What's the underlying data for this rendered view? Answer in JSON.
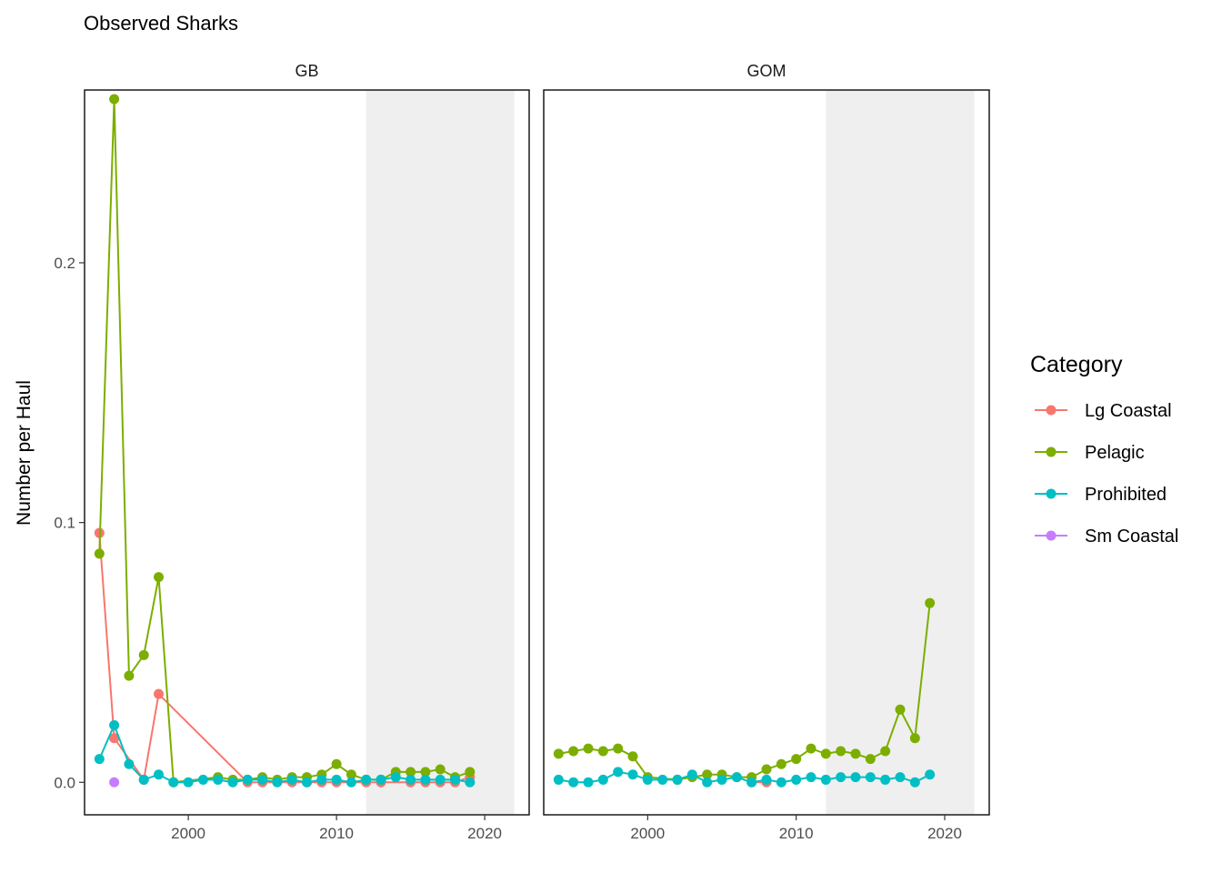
{
  "chart_data": {
    "type": "line",
    "title": "Observed Sharks",
    "xlabel": "",
    "ylabel": "Number per Haul",
    "xlim": [
      1993,
      2023
    ],
    "ylim": [
      -0.0125,
      0.2665
    ],
    "xticks": [
      2000,
      2010,
      2020
    ],
    "yticks": [
      0.0,
      0.1,
      0.2
    ],
    "ytick_labels": [
      "0.0",
      "0.1",
      "0.2"
    ],
    "shaded_region": [
      2012,
      2022
    ],
    "legend": {
      "title": "Category",
      "position": "right",
      "items": [
        {
          "label": "Lg Coastal",
          "color": "#F8766D"
        },
        {
          "label": "Pelagic",
          "color": "#7CAE00"
        },
        {
          "label": "Prohibited",
          "color": "#00BFC4"
        },
        {
          "label": "Sm Coastal",
          "color": "#C77CFF"
        }
      ]
    },
    "panels": [
      {
        "name": "GB",
        "series": [
          {
            "name": "Lg Coastal",
            "color": "#F8766D",
            "points": [
              [
                1994,
                0.096
              ],
              [
                1995,
                0.017
              ],
              [
                1997,
                0.001
              ],
              [
                1998,
                0.034
              ],
              [
                2004,
                0.0
              ],
              [
                2005,
                0.0
              ],
              [
                2007,
                0.0
              ],
              [
                2008,
                0.0
              ],
              [
                2009,
                0.0
              ],
              [
                2010,
                0.0
              ],
              [
                2012,
                0.0
              ],
              [
                2013,
                0.0
              ],
              [
                2015,
                0.0
              ],
              [
                2016,
                0.0
              ],
              [
                2017,
                0.0
              ],
              [
                2018,
                0.0
              ],
              [
                2019,
                0.002
              ]
            ]
          },
          {
            "name": "Pelagic",
            "color": "#7CAE00",
            "points": [
              [
                1994,
                0.088
              ],
              [
                1995,
                0.263
              ],
              [
                1996,
                0.041
              ],
              [
                1997,
                0.049
              ],
              [
                1998,
                0.079
              ],
              [
                1999,
                0.0
              ],
              [
                2002,
                0.002
              ],
              [
                2003,
                0.001
              ],
              [
                2004,
                0.001
              ],
              [
                2005,
                0.002
              ],
              [
                2006,
                0.001
              ],
              [
                2007,
                0.002
              ],
              [
                2008,
                0.002
              ],
              [
                2009,
                0.003
              ],
              [
                2010,
                0.007
              ],
              [
                2011,
                0.003
              ],
              [
                2012,
                0.001
              ],
              [
                2013,
                0.001
              ],
              [
                2014,
                0.004
              ],
              [
                2015,
                0.004
              ],
              [
                2016,
                0.004
              ],
              [
                2017,
                0.005
              ],
              [
                2018,
                0.002
              ],
              [
                2019,
                0.004
              ]
            ]
          },
          {
            "name": "Prohibited",
            "color": "#00BFC4",
            "points": [
              [
                1994,
                0.009
              ],
              [
                1995,
                0.022
              ],
              [
                1996,
                0.007
              ],
              [
                1997,
                0.001
              ],
              [
                1998,
                0.003
              ],
              [
                1999,
                0.0
              ],
              [
                2000,
                0.0
              ],
              [
                2001,
                0.001
              ],
              [
                2002,
                0.001
              ],
              [
                2003,
                0.0
              ],
              [
                2004,
                0.001
              ],
              [
                2005,
                0.001
              ],
              [
                2006,
                0.0
              ],
              [
                2007,
                0.001
              ],
              [
                2008,
                0.0
              ],
              [
                2009,
                0.001
              ],
              [
                2010,
                0.001
              ],
              [
                2011,
                0.0
              ],
              [
                2012,
                0.001
              ],
              [
                2013,
                0.001
              ],
              [
                2014,
                0.002
              ],
              [
                2015,
                0.001
              ],
              [
                2016,
                0.001
              ],
              [
                2017,
                0.001
              ],
              [
                2018,
                0.001
              ],
              [
                2019,
                0.0
              ]
            ]
          },
          {
            "name": "Sm Coastal",
            "color": "#C77CFF",
            "points": [
              [
                1995,
                0.0
              ]
            ]
          }
        ]
      },
      {
        "name": "GOM",
        "series": [
          {
            "name": "Lg Coastal",
            "color": "#F8766D",
            "points": [
              [
                2007,
                0.0
              ],
              [
                2008,
                0.0
              ]
            ]
          },
          {
            "name": "Pelagic",
            "color": "#7CAE00",
            "points": [
              [
                1994,
                0.011
              ],
              [
                1995,
                0.012
              ],
              [
                1996,
                0.013
              ],
              [
                1997,
                0.012
              ],
              [
                1998,
                0.013
              ],
              [
                1999,
                0.01
              ],
              [
                2000,
                0.002
              ],
              [
                2002,
                0.001
              ],
              [
                2003,
                0.002
              ],
              [
                2004,
                0.003
              ],
              [
                2005,
                0.003
              ],
              [
                2006,
                0.002
              ],
              [
                2007,
                0.002
              ],
              [
                2008,
                0.005
              ],
              [
                2009,
                0.007
              ],
              [
                2010,
                0.009
              ],
              [
                2011,
                0.013
              ],
              [
                2012,
                0.011
              ],
              [
                2013,
                0.012
              ],
              [
                2014,
                0.011
              ],
              [
                2015,
                0.009
              ],
              [
                2016,
                0.012
              ],
              [
                2017,
                0.028
              ],
              [
                2018,
                0.017
              ],
              [
                2019,
                0.069
              ]
            ]
          },
          {
            "name": "Prohibited",
            "color": "#00BFC4",
            "points": [
              [
                1994,
                0.001
              ],
              [
                1995,
                0.0
              ],
              [
                1996,
                0.0
              ],
              [
                1997,
                0.001
              ],
              [
                1998,
                0.004
              ],
              [
                1999,
                0.003
              ],
              [
                2000,
                0.001
              ],
              [
                2001,
                0.001
              ],
              [
                2002,
                0.001
              ],
              [
                2003,
                0.003
              ],
              [
                2004,
                0.0
              ],
              [
                2005,
                0.001
              ],
              [
                2006,
                0.002
              ],
              [
                2007,
                0.0
              ],
              [
                2008,
                0.001
              ],
              [
                2009,
                0.0
              ],
              [
                2010,
                0.001
              ],
              [
                2011,
                0.002
              ],
              [
                2012,
                0.001
              ],
              [
                2013,
                0.002
              ],
              [
                2014,
                0.002
              ],
              [
                2015,
                0.002
              ],
              [
                2016,
                0.001
              ],
              [
                2017,
                0.002
              ],
              [
                2018,
                0.0
              ],
              [
                2019,
                0.003
              ]
            ]
          }
        ]
      }
    ]
  }
}
